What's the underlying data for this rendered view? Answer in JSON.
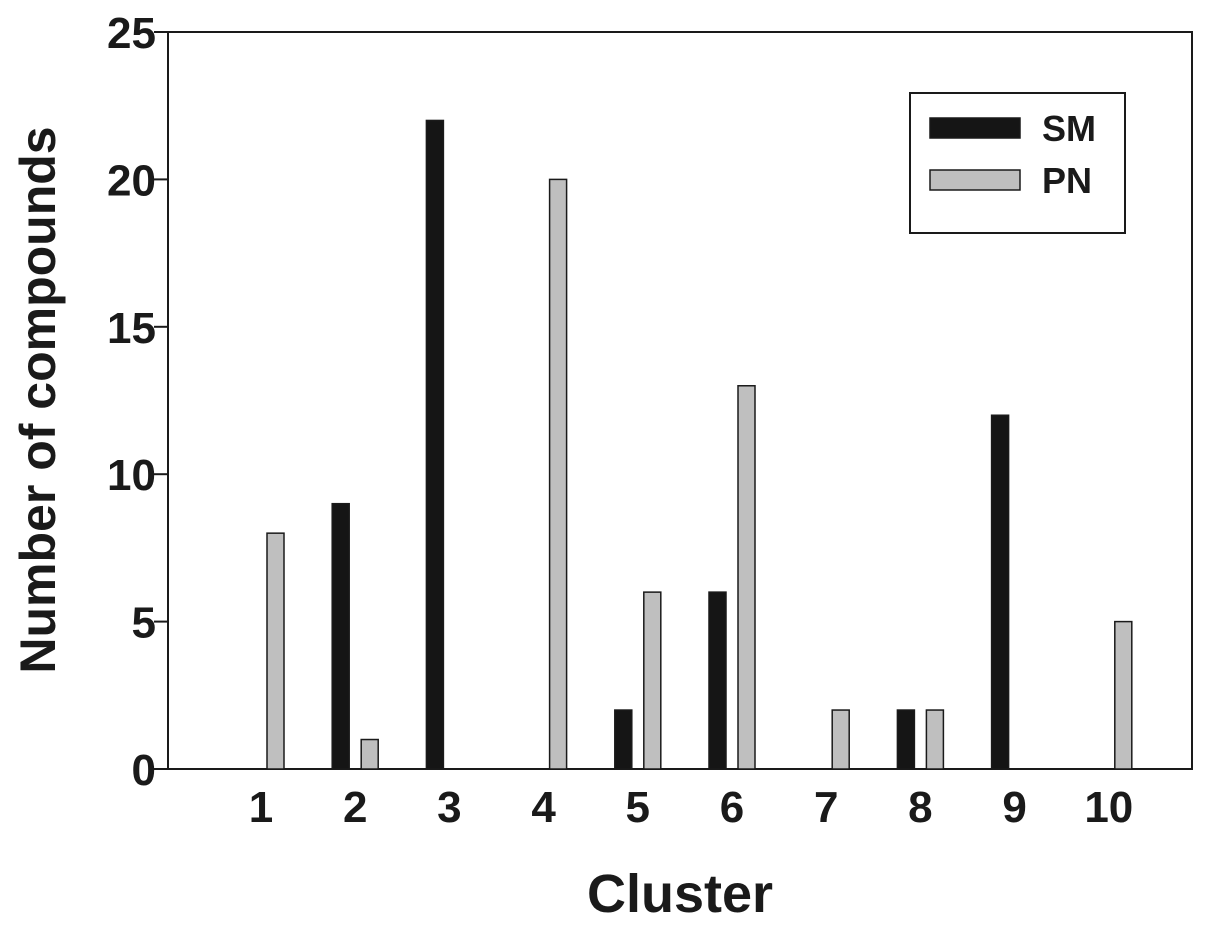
{
  "chart_data": {
    "type": "bar",
    "title": "",
    "xlabel": "Cluster",
    "ylabel": "Number of compounds",
    "categories": [
      "1",
      "2",
      "3",
      "4",
      "5",
      "6",
      "7",
      "8",
      "9",
      "10"
    ],
    "series": [
      {
        "name": "SM",
        "color": "#151515",
        "values": [
          0,
          9,
          22,
          0,
          2,
          6,
          0,
          2,
          12,
          0
        ]
      },
      {
        "name": "PN",
        "color": "#bfbfbf",
        "values": [
          8,
          1,
          0,
          20,
          6,
          13,
          2,
          2,
          0,
          5
        ]
      }
    ],
    "ylim": [
      0,
      25
    ],
    "yticks": [
      0,
      5,
      10,
      15,
      20,
      25
    ],
    "legend": "top-right",
    "grid": false
  }
}
